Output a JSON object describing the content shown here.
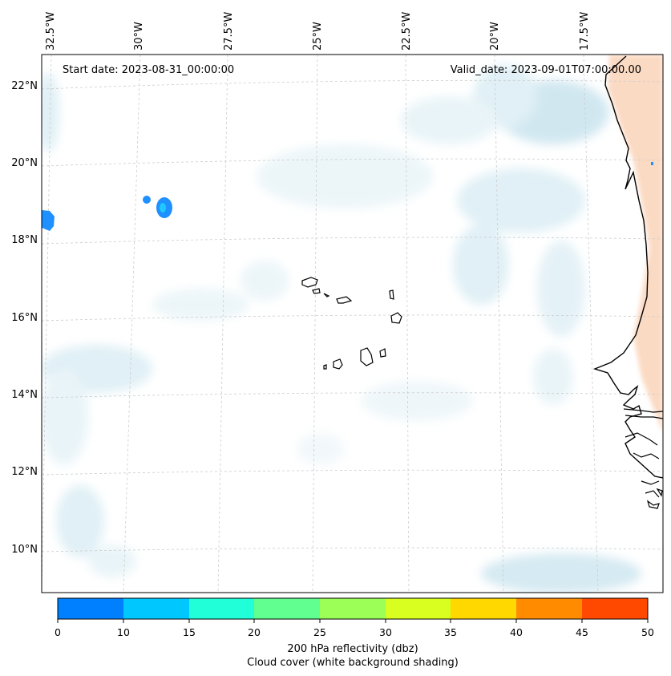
{
  "map": {
    "start_date": "Start date: 2023-08-31_00:00:00",
    "valid_date": "Valid_date: 2023-09-01T07:00:00.00",
    "lon_labels": [
      "32.5°W",
      "30°W",
      "27.5°W",
      "25°W",
      "22.5°W",
      "20°W",
      "17.5°W"
    ],
    "lat_labels": [
      "22°N",
      "20°N",
      "18°N",
      "16°N",
      "14°N",
      "12°N",
      "10°N"
    ]
  },
  "colorbar": {
    "ticks": [
      "0",
      "10",
      "15",
      "20",
      "25",
      "30",
      "35",
      "40",
      "45",
      "50"
    ],
    "colors": [
      "#0080ff",
      "#00c8ff",
      "#20ffd8",
      "#60ff90",
      "#9cff58",
      "#d8ff20",
      "#ffd800",
      "#ff8c00",
      "#ff4800"
    ],
    "label_line1": "200 hPa reflectivity (dbz)",
    "label_line2": "Cloud cover (white background shading)"
  },
  "colors": {
    "cloud": "#d6ebf3",
    "warm_land": "#fbd6bd",
    "echo": "#1e90ff",
    "grid": "#cccccc"
  }
}
